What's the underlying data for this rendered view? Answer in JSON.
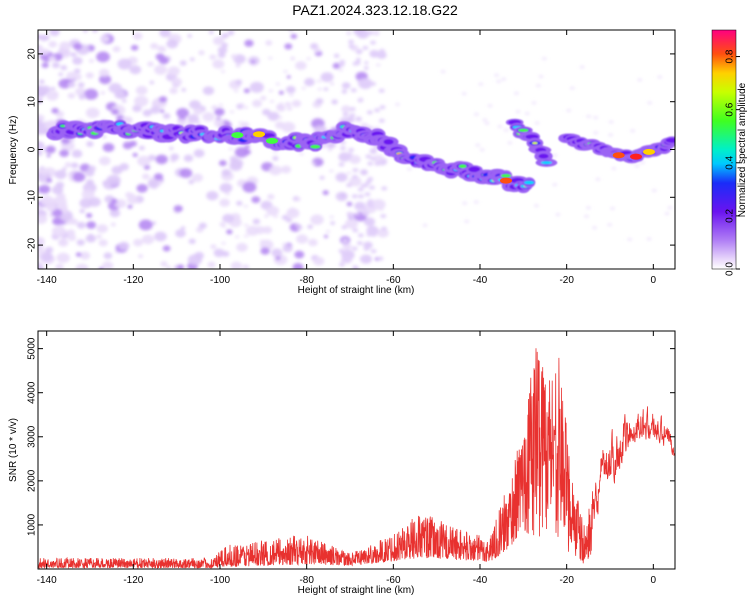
{
  "page_title": "PAZ1.2024.323.12.18.G22",
  "chart_data": [
    {
      "type": "heatmap",
      "title": "PAZ1.2024.323.12.18.G22",
      "xlabel": "Height of straight line (km)",
      "ylabel": "Frequency (Hz)",
      "xlim": [
        -142,
        5
      ],
      "ylim": [
        -25,
        25
      ],
      "x_ticks": [
        -140,
        -120,
        -100,
        -80,
        -60,
        -40,
        -20,
        0
      ],
      "y_ticks": [
        -20,
        -10,
        0,
        10,
        20
      ],
      "colorbar": {
        "label": "Normalized spectral amplitude",
        "range": [
          0,
          0.9
        ],
        "ticks": [
          0.0,
          0.2,
          0.4,
          0.6,
          0.8
        ],
        "colormap": "rainbow-purple-to-red"
      },
      "ridge": {
        "points": [
          {
            "x": -138,
            "y": 4
          },
          {
            "x": -125,
            "y": 4.5
          },
          {
            "x": -110,
            "y": 3.5
          },
          {
            "x": -100,
            "y": 3
          },
          {
            "x": -92,
            "y": 3
          },
          {
            "x": -85,
            "y": 1.5
          },
          {
            "x": -78,
            "y": 1.5
          },
          {
            "x": -70,
            "y": 4.5
          },
          {
            "x": -63,
            "y": 2
          },
          {
            "x": -56,
            "y": -2
          },
          {
            "x": -48,
            "y": -4
          },
          {
            "x": -40,
            "y": -5
          },
          {
            "x": -34,
            "y": -6.5
          },
          {
            "x": -28,
            "y": -8
          }
        ],
        "branch": [
          {
            "x": -32,
            "y": 5
          },
          {
            "x": -28,
            "y": 2
          },
          {
            "x": -24,
            "y": -3
          }
        ],
        "tail": [
          {
            "x": -20,
            "y": 2.5
          },
          {
            "x": -12,
            "y": 0
          },
          {
            "x": -5,
            "y": -1.5
          },
          {
            "x": 0,
            "y": 0
          },
          {
            "x": 5,
            "y": 1.5
          }
        ]
      }
    },
    {
      "type": "line",
      "xlabel": "Height of straight line (km)",
      "ylabel": "SNR (10 * v/v)",
      "xlim": [
        -142,
        5
      ],
      "ylim": [
        0,
        5400
      ],
      "x_ticks": [
        -140,
        -120,
        -100,
        -80,
        -60,
        -40,
        -20,
        0
      ],
      "y_ticks": [
        1000,
        2000,
        3000,
        4000,
        5000
      ],
      "color": "#e8312f",
      "envelope": [
        {
          "x": -142,
          "low": 20,
          "high": 250
        },
        {
          "x": -102,
          "low": 20,
          "high": 250
        },
        {
          "x": -98,
          "low": 50,
          "high": 550
        },
        {
          "x": -80,
          "low": 100,
          "high": 800
        },
        {
          "x": -70,
          "low": 80,
          "high": 350
        },
        {
          "x": -62,
          "low": 150,
          "high": 700
        },
        {
          "x": -54,
          "low": 250,
          "high": 1300
        },
        {
          "x": -44,
          "low": 200,
          "high": 900
        },
        {
          "x": -38,
          "low": 150,
          "high": 700
        },
        {
          "x": -34,
          "low": 400,
          "high": 1800
        },
        {
          "x": -30,
          "low": 800,
          "high": 3200
        },
        {
          "x": -27,
          "low": 600,
          "high": 5300
        },
        {
          "x": -24,
          "low": 900,
          "high": 4500
        },
        {
          "x": -22,
          "low": 700,
          "high": 5000
        },
        {
          "x": -19,
          "low": 300,
          "high": 2400
        },
        {
          "x": -16,
          "low": 100,
          "high": 1000
        },
        {
          "x": -14.5,
          "low": 300,
          "high": 1500
        },
        {
          "x": -12,
          "low": 1500,
          "high": 3000
        },
        {
          "x": -8,
          "low": 2000,
          "high": 3600
        },
        {
          "x": -4,
          "low": 2800,
          "high": 3900
        },
        {
          "x": 0,
          "low": 2800,
          "high": 3800
        },
        {
          "x": 5,
          "low": 2500,
          "high": 3200
        }
      ]
    }
  ]
}
